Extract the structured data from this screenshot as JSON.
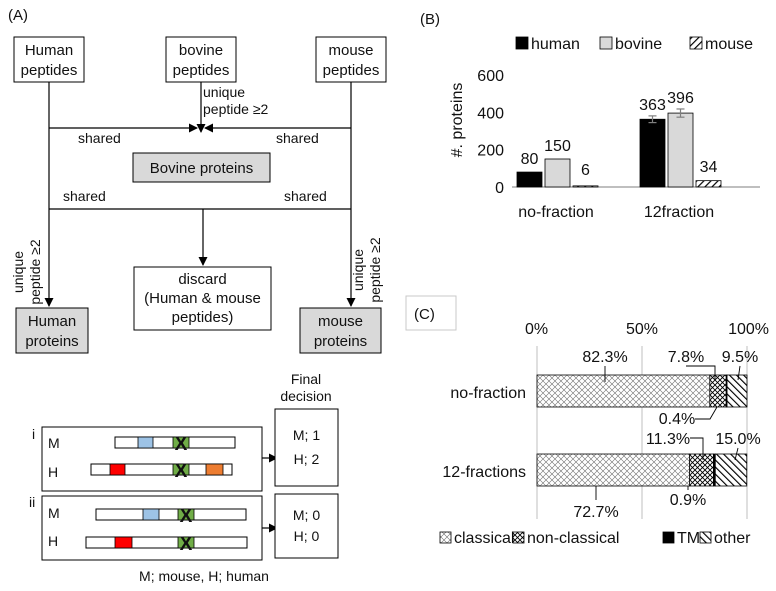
{
  "panel_labels": {
    "a": "(A)",
    "b": "(B)",
    "c": "(C)"
  },
  "flow": {
    "human_peptides": [
      "Human",
      "peptides"
    ],
    "bovine_peptides": [
      "bovine",
      "peptides"
    ],
    "mouse_peptides": [
      "mouse",
      "peptides"
    ],
    "unique_peptide_top": [
      "unique",
      "peptide ≥2"
    ],
    "shared": "shared",
    "bovine_proteins": "Bovine proteins",
    "unique_peptide_side": [
      "unique",
      "peptide ≥2"
    ],
    "discard": [
      "discard",
      "(Human & mouse",
      "peptides)"
    ],
    "human_proteins": [
      "Human",
      "proteins"
    ],
    "mouse_proteins": [
      "mouse",
      "proteins"
    ]
  },
  "example": {
    "final_decision": [
      "Final",
      "decision"
    ],
    "case_i": "i",
    "case_ii": "ii",
    "row_m": "M",
    "row_h": "H",
    "decision_i": [
      "M; 1",
      "H; 2"
    ],
    "decision_ii": [
      "M; 0",
      "H; 0"
    ],
    "cross": "X",
    "footnote": "M; mouse, H; human",
    "colors": {
      "blue": "#9dc3e6",
      "green": "#70ad47",
      "red": "#ff0000",
      "orange": "#ed7d31"
    }
  },
  "chart_data": [
    {
      "type": "bar",
      "title": "",
      "ylabel": "#. proteins",
      "xlabel": "",
      "ylim": [
        0,
        600
      ],
      "yticks": [
        0,
        200,
        400,
        600
      ],
      "categories": [
        "no-fraction",
        "12fraction"
      ],
      "legend_position": "top",
      "series": [
        {
          "name": "human",
          "values": [
            80,
            363
          ],
          "color": "#000000",
          "fill": "solid"
        },
        {
          "name": "bovine",
          "values": [
            150,
            396
          ],
          "color": "#d9d9d9",
          "fill": "solid"
        },
        {
          "name": "mouse",
          "values": [
            6,
            34
          ],
          "color": "#000000",
          "fill": "hatch"
        }
      ],
      "error_bars": [
        [
          0,
          30
        ],
        [
          0,
          38
        ]
      ]
    },
    {
      "type": "bar",
      "orientation": "horizontal-stacked",
      "title": "",
      "xlim": [
        0,
        100
      ],
      "xticks": [
        "0%",
        "50%",
        "100%"
      ],
      "categories": [
        "no-fraction",
        "12-fractions"
      ],
      "legend_position": "bottom",
      "series": [
        {
          "name": "classical",
          "values": [
            82.3,
            72.7
          ],
          "labels": [
            "82.3%",
            "72.7%"
          ]
        },
        {
          "name": "non-classical",
          "values": [
            7.8,
            11.3
          ],
          "labels": [
            "7.8%",
            "11.3%"
          ]
        },
        {
          "name": "TM",
          "values": [
            0.4,
            0.9
          ],
          "labels": [
            "0.4%",
            "0.9%"
          ]
        },
        {
          "name": "other",
          "values": [
            9.5,
            15.0
          ],
          "labels": [
            "9.5%",
            "15.0%"
          ]
        }
      ]
    }
  ]
}
